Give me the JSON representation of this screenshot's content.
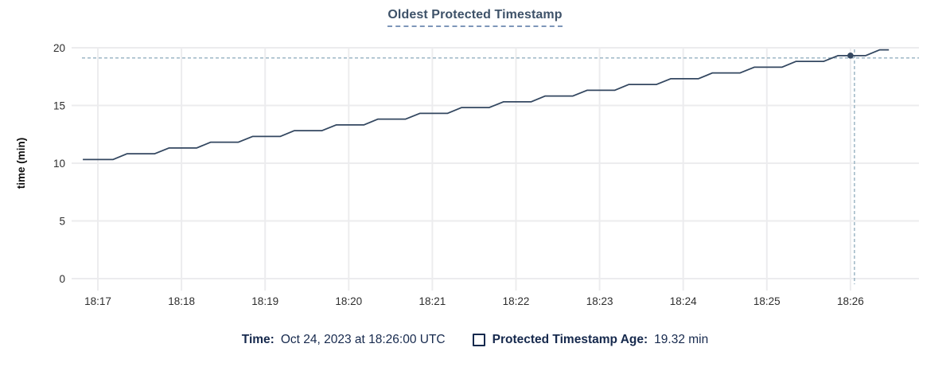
{
  "title": "Oldest Protected Timestamp",
  "colors": {
    "background": "#ffffff",
    "line": "#334760",
    "grid": "#ececee",
    "crosshair": "#95b0c0",
    "title": "#3e5269",
    "title_underline": "#7e96b9",
    "tick_label": "#2e2e2e",
    "axis_title": "#101010",
    "legend_text": "#16294d"
  },
  "chart_data": {
    "type": "line",
    "title": "Oldest Protected Timestamp",
    "xlabel": "",
    "ylabel": "time (min)",
    "ylim": [
      0,
      20
    ],
    "y_ticks": [
      0,
      5,
      10,
      15,
      20
    ],
    "x_ticks": [
      {
        "label": "18:17",
        "minute": 17
      },
      {
        "label": "18:18",
        "minute": 18
      },
      {
        "label": "18:19",
        "minute": 19
      },
      {
        "label": "18:20",
        "minute": 20
      },
      {
        "label": "18:21",
        "minute": 21
      },
      {
        "label": "18:22",
        "minute": 22
      },
      {
        "label": "18:23",
        "minute": 23
      },
      {
        "label": "18:24",
        "minute": 24
      },
      {
        "label": "18:25",
        "minute": 25
      },
      {
        "label": "18:26",
        "minute": 26
      }
    ],
    "grid": true,
    "legend_position": "bottom",
    "series": [
      {
        "name": "Protected Timestamp Age",
        "unit": "min",
        "points": [
          [
            16.82,
            10.32
          ],
          [
            17.18,
            10.32
          ],
          [
            17.35,
            10.82
          ],
          [
            17.68,
            10.82
          ],
          [
            17.85,
            11.32
          ],
          [
            18.18,
            11.32
          ],
          [
            18.35,
            11.82
          ],
          [
            18.68,
            11.82
          ],
          [
            18.85,
            12.32
          ],
          [
            19.18,
            12.32
          ],
          [
            19.35,
            12.82
          ],
          [
            19.68,
            12.82
          ],
          [
            19.85,
            13.32
          ],
          [
            20.18,
            13.32
          ],
          [
            20.35,
            13.82
          ],
          [
            20.68,
            13.82
          ],
          [
            20.85,
            14.32
          ],
          [
            21.18,
            14.32
          ],
          [
            21.35,
            14.82
          ],
          [
            21.68,
            14.82
          ],
          [
            21.85,
            15.32
          ],
          [
            22.18,
            15.32
          ],
          [
            22.35,
            15.82
          ],
          [
            22.68,
            15.82
          ],
          [
            22.85,
            16.32
          ],
          [
            23.18,
            16.32
          ],
          [
            23.35,
            16.82
          ],
          [
            23.68,
            16.82
          ],
          [
            23.85,
            17.32
          ],
          [
            24.18,
            17.32
          ],
          [
            24.35,
            17.82
          ],
          [
            24.68,
            17.82
          ],
          [
            24.85,
            18.32
          ],
          [
            25.18,
            18.32
          ],
          [
            25.35,
            18.82
          ],
          [
            25.68,
            18.82
          ],
          [
            25.85,
            19.32
          ],
          [
            26.18,
            19.32
          ],
          [
            26.35,
            19.82
          ],
          [
            26.46,
            19.82
          ]
        ]
      }
    ],
    "hover": {
      "minute": 26.0,
      "value": 19.32,
      "time_text": "Oct 24, 2023 at 18:26:00 UTC",
      "value_text": "19.32 min"
    }
  },
  "legend": {
    "time_label": "Time:",
    "time_value": "Oct 24, 2023 at 18:26:00 UTC",
    "series_label": "Protected Timestamp Age:",
    "series_value": "19.32 min"
  }
}
